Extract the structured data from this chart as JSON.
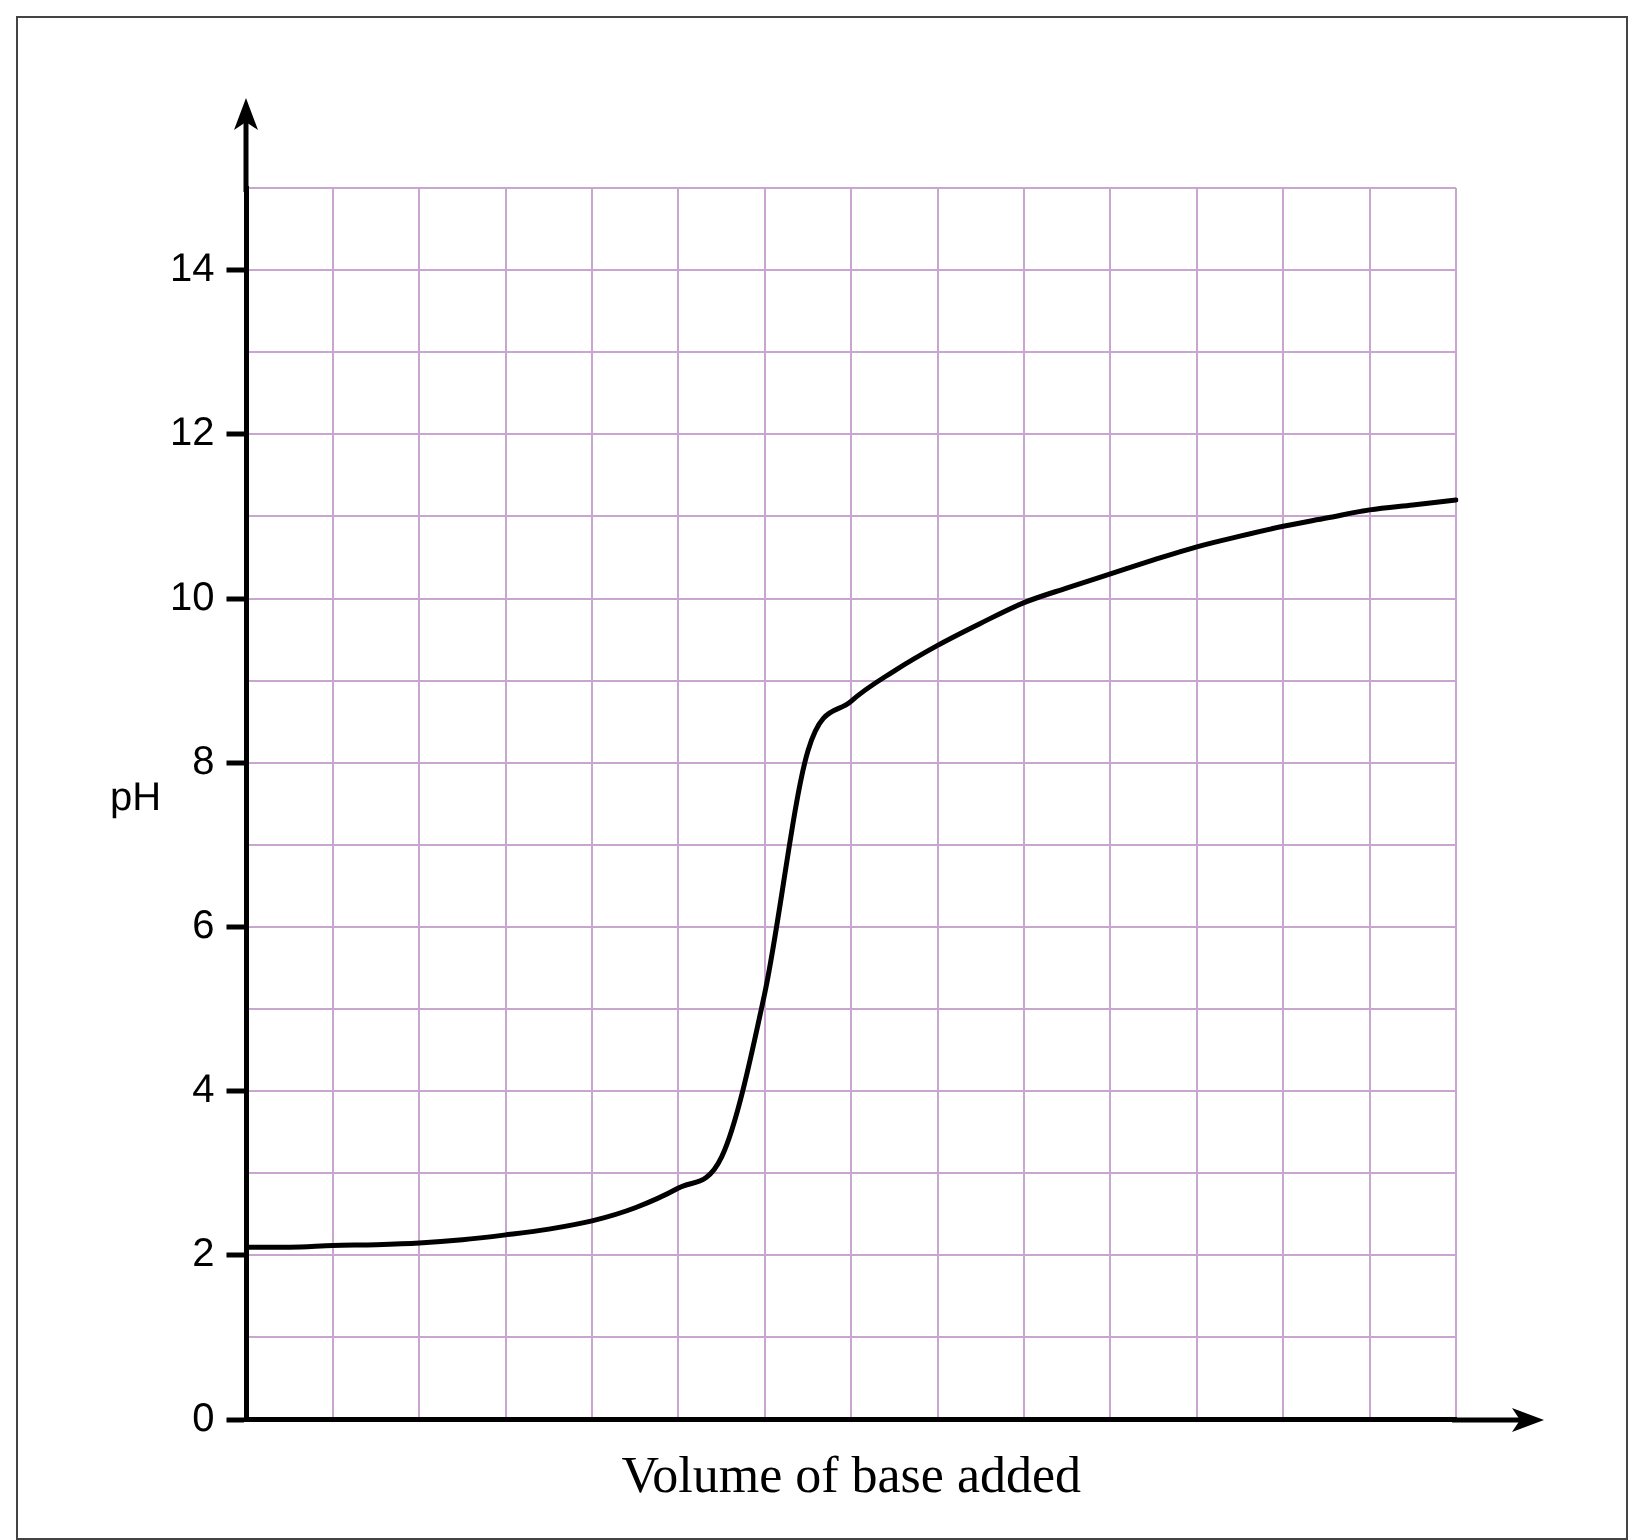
{
  "chart_data": {
    "type": "line",
    "xlabel": "Volume of base added",
    "ylabel": "pH",
    "categories": [
      null,
      null,
      null,
      null,
      null,
      null,
      null,
      null,
      null,
      null,
      null,
      null,
      null,
      null,
      null,
      null,
      null,
      null,
      null,
      null,
      null,
      null,
      null,
      null,
      null,
      null,
      null,
      null,
      null
    ],
    "series": [
      {
        "color": "#000000",
        "values": [
          2.1,
          2.1,
          2.12,
          2.13,
          2.15,
          2.19,
          2.25,
          2.32,
          2.42,
          2.58,
          2.82,
          3.2,
          5.2,
          8.15,
          8.75,
          9.12,
          9.43,
          9.7,
          9.95,
          10.13,
          10.3,
          10.47,
          10.63,
          10.76,
          10.88,
          10.98,
          11.08,
          11.14,
          11.2
        ]
      }
    ],
    "ylim": [
      0,
      15
    ],
    "yticks": [
      0,
      {
        "value": 1,
        "label": null
      },
      2,
      {
        "value": 3,
        "label": null
      },
      4,
      {
        "value": 5,
        "label": null
      },
      6,
      {
        "value": 7,
        "label": null
      },
      8,
      {
        "value": 9,
        "label": null
      },
      10,
      {
        "value": 11,
        "label": null
      },
      12,
      {
        "value": 13,
        "label": null
      },
      14,
      {
        "value": 15,
        "label": null
      }
    ],
    "grid": true,
    "legend": false,
    "marker": "none",
    "line_style": "solid",
    "tick_labels": "y"
  }
}
